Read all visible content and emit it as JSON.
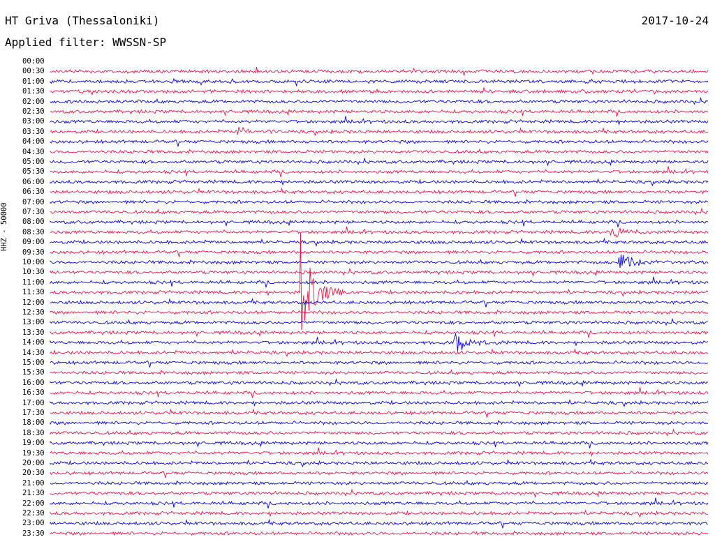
{
  "header": {
    "station": "HT Griva (Thessaloniki)",
    "date": "2017-10-24",
    "filter": "Applied filter: WWSSN-SP",
    "channel": "HHZ - 50000"
  },
  "colors": {
    "blue": "#0000dd",
    "red": "#ee1144"
  },
  "chart_data": {
    "type": "line",
    "title": "",
    "row_labels": [
      "00:00",
      "00:30",
      "01:00",
      "01:30",
      "02:00",
      "02:30",
      "03:00",
      "03:30",
      "04:00",
      "04:30",
      "05:00",
      "05:30",
      "06:00",
      "06:30",
      "07:00",
      "07:30",
      "08:00",
      "08:30",
      "09:00",
      "09:30",
      "10:00",
      "10:30",
      "11:00",
      "11:30",
      "12:00",
      "12:30",
      "13:00",
      "13:30",
      "14:00",
      "14:30",
      "15:00",
      "15:30",
      "16:00",
      "16:30",
      "17:00",
      "17:30",
      "18:00",
      "18:30",
      "19:00",
      "19:30",
      "20:00",
      "20:30",
      "21:00",
      "21:30",
      "22:00",
      "22:30",
      "23:00",
      "23:30"
    ],
    "row_colors": [
      "blue",
      "red",
      "blue",
      "red",
      "blue",
      "red",
      "blue",
      "red",
      "blue",
      "red",
      "blue",
      "red",
      "blue",
      "red",
      "blue",
      "red",
      "blue",
      "red",
      "blue",
      "red",
      "blue",
      "red",
      "blue",
      "red",
      "blue",
      "red",
      "blue",
      "red",
      "blue",
      "red",
      "blue",
      "red",
      "blue",
      "red",
      "blue",
      "red",
      "blue",
      "red",
      "blue",
      "red",
      "blue",
      "red",
      "blue",
      "red",
      "blue",
      "red",
      "blue",
      "red"
    ],
    "notable_events": [
      {
        "row": "11:30",
        "minute": 11.5,
        "amplitude": "large"
      },
      {
        "row": "14:00",
        "minute": 18.5,
        "amplitude": "medium"
      },
      {
        "row": "08:30",
        "minute": 25.5,
        "amplitude": "medium"
      },
      {
        "row": "10:00",
        "minute": 26.0,
        "amplitude": "medium"
      },
      {
        "row": "03:30",
        "minute": 8.5,
        "amplitude": "small"
      }
    ]
  }
}
